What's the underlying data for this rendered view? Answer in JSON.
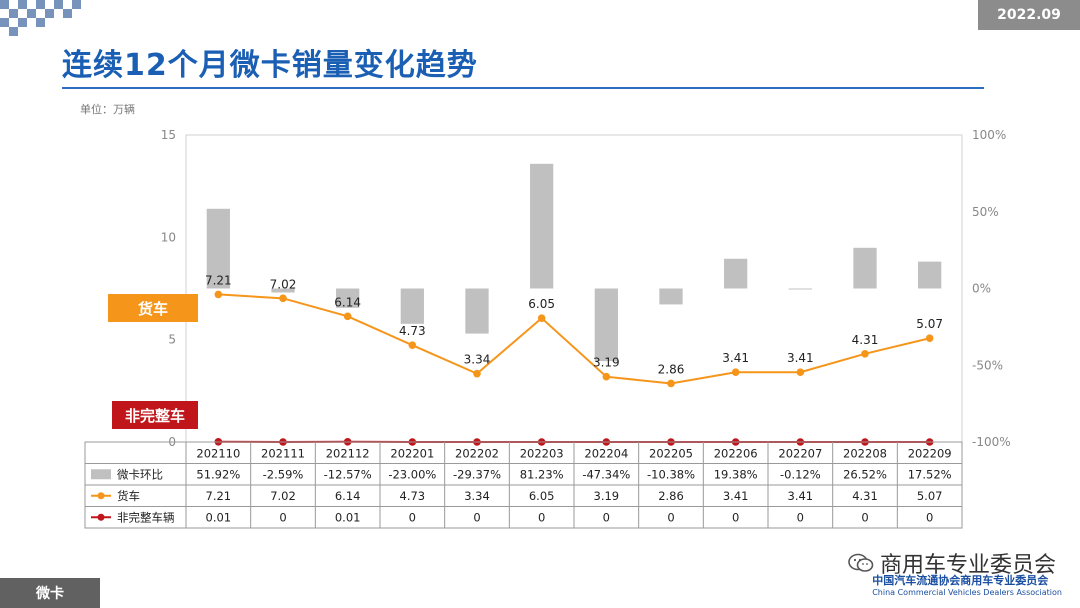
{
  "header": {
    "title": "连续12个月微卡销量变化趋势",
    "date_badge": "2022.09",
    "unit": "单位：万辆"
  },
  "tags": {
    "truck": "货车",
    "non_complete": "非完整车"
  },
  "footer": {
    "section": "微卡",
    "wechat_name": "商用车专业委员会",
    "association_cn": "中国汽车流通协会商用车专业委员会",
    "association_en": "China Commercial Vehicles Dealers Association"
  },
  "colors": {
    "title": "#1a5fb4",
    "bar": "#c0c0c0",
    "truck_line": "#f5951a",
    "noncomplete_line": "#c0161b"
  },
  "chart_data": {
    "type": "bar+line",
    "categories": [
      "202110",
      "202111",
      "202112",
      "202201",
      "202202",
      "202203",
      "202204",
      "202205",
      "202206",
      "202207",
      "202208",
      "202209"
    ],
    "left_axis": {
      "range": [
        0,
        15
      ],
      "ticks": [
        "0",
        "5",
        "10",
        "15"
      ]
    },
    "right_axis": {
      "range": [
        -100,
        100
      ],
      "ticks": [
        "100%",
        "50%",
        "0%",
        "-50%",
        "-100%"
      ]
    },
    "series": [
      {
        "name": "微卡环比",
        "kind": "bar",
        "axis": "right",
        "values": [
          51.92,
          -2.59,
          -12.57,
          -23.0,
          -29.37,
          81.23,
          -47.34,
          -10.38,
          19.38,
          -0.12,
          26.52,
          17.52
        ],
        "labels": [
          "51.92%",
          "-2.59%",
          "-12.57%",
          "-23.00%",
          "-29.37%",
          "81.23%",
          "-47.34%",
          "-10.38%",
          "19.38%",
          "-0.12%",
          "26.52%",
          "17.52%"
        ]
      },
      {
        "name": "货车",
        "kind": "line",
        "axis": "left",
        "values": [
          7.21,
          7.02,
          6.14,
          4.73,
          3.34,
          6.05,
          3.19,
          2.86,
          3.41,
          3.41,
          4.31,
          5.07
        ],
        "labels": [
          "7.21",
          "7.02",
          "6.14",
          "4.73",
          "3.34",
          "6.05",
          "3.19",
          "2.86",
          "3.41",
          "3.41",
          "4.31",
          "5.07"
        ]
      },
      {
        "name": "非完整车辆",
        "kind": "line",
        "axis": "left",
        "values": [
          0.01,
          0,
          0.01,
          0,
          0,
          0,
          0,
          0,
          0,
          0,
          0,
          0
        ],
        "labels": [
          "0.01",
          "0",
          "0.01",
          "0",
          "0",
          "0",
          "0",
          "0",
          "0",
          "0",
          "0",
          "0"
        ]
      }
    ],
    "grid": false,
    "legend": "data-table"
  }
}
